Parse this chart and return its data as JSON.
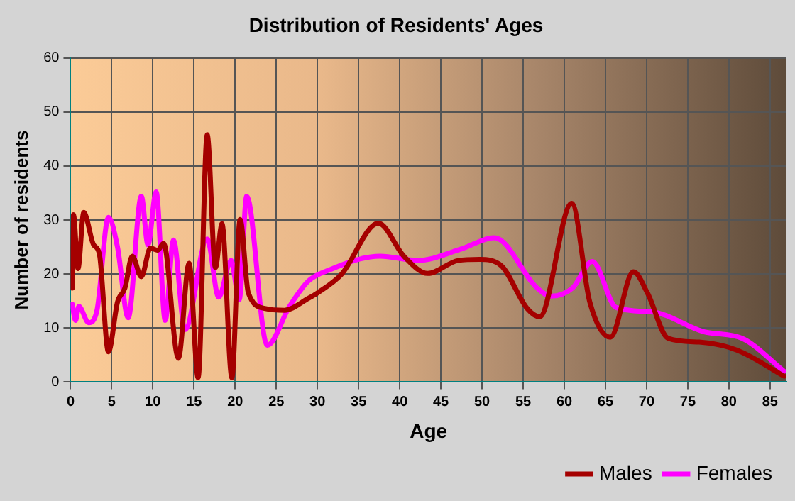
{
  "chart_data": {
    "type": "line",
    "title": "Distribution of Residents' Ages",
    "xlabel": "Age",
    "ylabel": "Number of residents",
    "xlim": [
      0,
      87
    ],
    "xticks": [
      0,
      5,
      10,
      15,
      20,
      25,
      30,
      35,
      40,
      45,
      50,
      55,
      60,
      65,
      70,
      75,
      80,
      85
    ],
    "ylim": [
      0,
      60
    ],
    "yticks": [
      0,
      10,
      20,
      30,
      40,
      50,
      60
    ],
    "grid": true,
    "legend": "bottom right",
    "series": [
      {
        "name": "Males",
        "color": "#a50000",
        "x": [
          0.2,
          0.35,
          0.9,
          1.6,
          2.8,
          3.5,
          4.6,
          5.7,
          6.6,
          7.5,
          8.6,
          9.7,
          10.6,
          11.3,
          13.1,
          14.4,
          15.5,
          16.6,
          17.6,
          18.4,
          19.6,
          20.6,
          21.6,
          23.7,
          26,
          28.9,
          30,
          32.9,
          37.4,
          40.5,
          43.4,
          47.1,
          49.7,
          52.3,
          55.5,
          57,
          60.9,
          63.1,
          65.6,
          68.4,
          70.1,
          72.6,
          76.4,
          81,
          86.7
        ],
        "values": [
          17.4,
          31,
          21,
          31.4,
          25.4,
          23.7,
          5.6,
          14.8,
          17.4,
          23.3,
          19.5,
          24.8,
          24.4,
          25.7,
          4.4,
          22,
          0.8,
          45.8,
          21.2,
          29.3,
          0.8,
          30.1,
          16.5,
          13.6,
          13.3,
          15.5,
          16.5,
          19.9,
          29.4,
          23.3,
          20.1,
          22.5,
          22.7,
          21.6,
          13.6,
          12.1,
          33.1,
          14.8,
          8.3,
          20.4,
          16.5,
          8.1,
          7.4,
          5.9,
          1.1
        ]
      },
      {
        "name": "Females",
        "color": "#ff00ff",
        "x": [
          0.2,
          0.6,
          1,
          2.2,
          3.2,
          4.6,
          5.7,
          7,
          8.6,
          9.4,
          10.4,
          11.5,
          12.5,
          13.9,
          16.6,
          18,
          19.5,
          20.5,
          21.4,
          23.9,
          26.6,
          28.9,
          31.2,
          37.6,
          42.2,
          47.4,
          51.5,
          56.7,
          58.4,
          61,
          63.4,
          66.3,
          70.6,
          77,
          81.6,
          86.7
        ],
        "values": [
          14.4,
          11.4,
          14,
          11,
          13.2,
          30.5,
          25,
          11.9,
          34.4,
          25.4,
          35.2,
          11.4,
          26.3,
          9.7,
          26.5,
          15.7,
          22.5,
          15.3,
          34.4,
          6.8,
          14,
          18.7,
          20.6,
          23.3,
          22.5,
          24.6,
          26.7,
          17.4,
          15.9,
          17.4,
          22.3,
          13.8,
          13,
          9.3,
          8.1,
          2
        ]
      }
    ]
  }
}
